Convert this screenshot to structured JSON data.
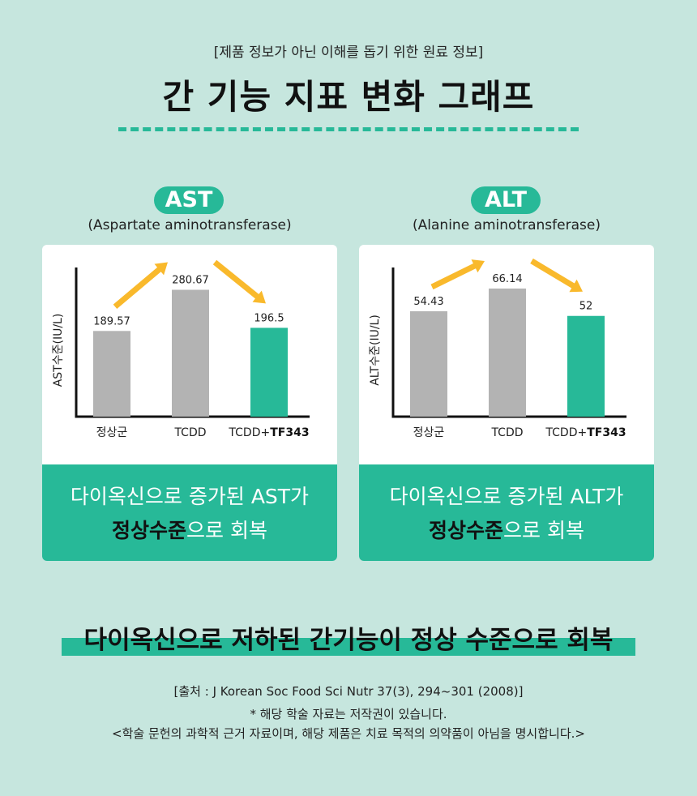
{
  "header": {
    "notice": "[제품 정보가 아닌 이해를 돕기 위한 원료 정보]",
    "title": "간 기능 지표 변화 그래프"
  },
  "panels": [
    {
      "badge": "AST",
      "subtitle": "(Aspartate aminotransferase)",
      "footer_line1": "다이옥신으로 증가된 AST가",
      "footer_strong": "정상수준",
      "footer_rest": "으로 회복"
    },
    {
      "badge": "ALT",
      "subtitle": "(Alanine aminotransferase)",
      "footer_line1": "다이옥신으로 증가된 ALT가",
      "footer_strong": "정상수준",
      "footer_rest": "으로 회복"
    }
  ],
  "chart_data": [
    {
      "type": "bar",
      "categories": [
        "정상군",
        "TCDD",
        "TCDD+TF343"
      ],
      "category_parts": [
        [
          "정상군",
          ""
        ],
        [
          "TCDD",
          ""
        ],
        [
          "TCDD+",
          "TF343"
        ]
      ],
      "values": [
        189.57,
        280.67,
        196.5
      ],
      "value_labels": [
        "189.57",
        "280.67",
        "196.5"
      ],
      "ylabel": "AST수준(IU/L)",
      "ylim": [
        0,
        330
      ],
      "colors": [
        "#b3b3b3",
        "#b3b3b3",
        "#27b998"
      ],
      "arrow_color": "#f9b92c"
    },
    {
      "type": "bar",
      "categories": [
        "정상군",
        "TCDD",
        "TCDD+TF343"
      ],
      "category_parts": [
        [
          "정상군",
          ""
        ],
        [
          "TCDD",
          ""
        ],
        [
          "TCDD+",
          "TF343"
        ]
      ],
      "values": [
        54.43,
        66.14,
        52
      ],
      "value_labels": [
        "54.43",
        "66.14",
        "52"
      ],
      "ylabel": "ALT수준(IU/L)",
      "ylim": [
        0,
        77
      ],
      "colors": [
        "#b3b3b3",
        "#b3b3b3",
        "#27b998"
      ],
      "arrow_color": "#f9b92c"
    }
  ],
  "conclusion": "다이옥신으로 저하된 간기능이 정상 수준으로 회복",
  "footer": {
    "citation": "[출처 : J Korean Soc Food Sci Nutr 37(3), 294~301 (2008)]",
    "note1": "* 해당 학술 자료는 저작권이 있습니다.",
    "note2": "<학술 문헌의 과학적 근거 자료이며, 해당 제품은 치료 목적의 의약품이 아님을 명시합니다.>"
  }
}
